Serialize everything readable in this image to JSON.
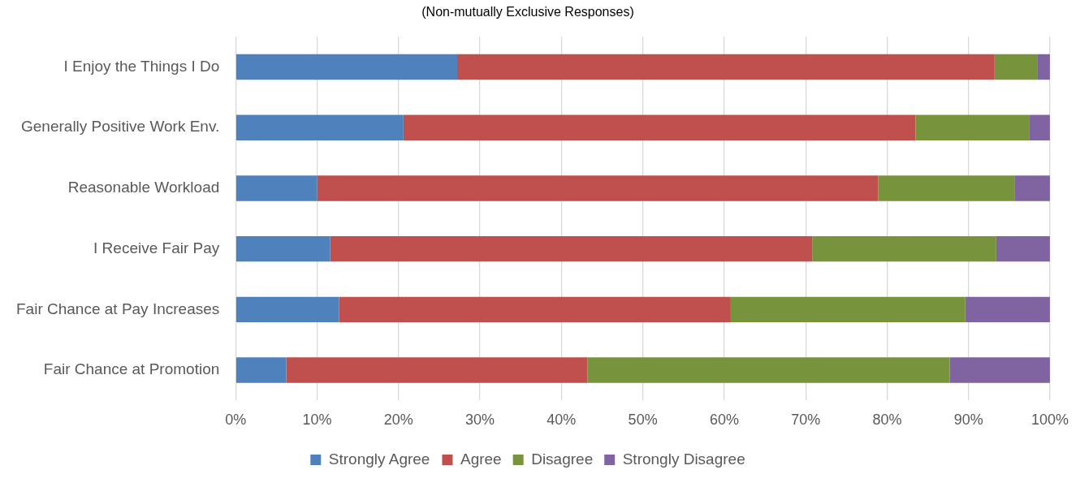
{
  "chart_data": {
    "type": "bar",
    "orientation": "horizontal",
    "stacked": true,
    "title": "(Non-mutually Exclusive Responses)",
    "categories": [
      "I Enjoy the Things I Do",
      "Generally Positive Work Env.",
      "Reasonable Workload",
      "I Receive Fair Pay",
      "Fair Chance at Pay Increases",
      "Fair Chance at Promotion"
    ],
    "series": [
      {
        "name": "Strongly Agree",
        "color": "#4f81bd",
        "values": [
          27.2,
          20.6,
          10.0,
          11.6,
          12.7,
          6.2
        ]
      },
      {
        "name": "Agree",
        "color": "#c0504d",
        "values": [
          66.0,
          62.9,
          68.9,
          59.2,
          48.1,
          37.0
        ]
      },
      {
        "name": "Disagree",
        "color": "#77933c",
        "values": [
          5.3,
          14.0,
          16.8,
          22.6,
          28.8,
          44.5
        ]
      },
      {
        "name": "Strongly Disagree",
        "color": "#8064a2",
        "values": [
          1.5,
          2.5,
          4.3,
          6.6,
          10.4,
          12.3
        ]
      }
    ],
    "xlim": [
      0,
      100
    ],
    "xticks": [
      {
        "value": 0,
        "label": "0%"
      },
      {
        "value": 10,
        "label": "10%"
      },
      {
        "value": 20,
        "label": "20%"
      },
      {
        "value": 30,
        "label": "30%"
      },
      {
        "value": 40,
        "label": "40%"
      },
      {
        "value": 50,
        "label": "50%"
      },
      {
        "value": 60,
        "label": "60%"
      },
      {
        "value": 70,
        "label": "70%"
      },
      {
        "value": 80,
        "label": "80%"
      },
      {
        "value": 90,
        "label": "90%"
      },
      {
        "value": 100,
        "label": "100%"
      }
    ],
    "grid": "x",
    "legend": "bottom"
  }
}
